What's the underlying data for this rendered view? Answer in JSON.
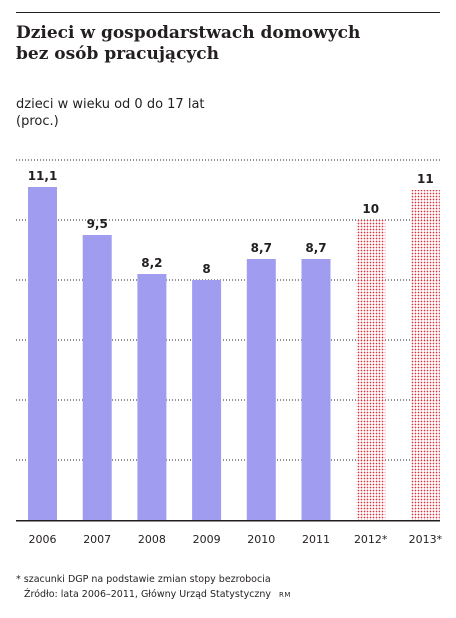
{
  "title_line1": "Dzieci w gospodarstwach domowych",
  "title_line2": "bez osób pracujących",
  "subtitle_line1": "dzieci w wieku od 0 do 17 lat",
  "subtitle_line2": "(proc.)",
  "footnote": "* szacunki DGP na podstawie zmian stopy bezrobocia",
  "source": "Źródło: lata 2006–2011, Główny Urząd Statystyczny",
  "credit": "RM",
  "colors": {
    "actual_bar": "#a09cf0",
    "estimate_dots": "#e0303a",
    "text": "#231f20",
    "grid": "#231f20"
  },
  "chart_data": {
    "type": "bar",
    "categories": [
      "2006",
      "2007",
      "2008",
      "2009",
      "2010",
      "2011",
      "2012*",
      "2013*"
    ],
    "values": [
      11.1,
      9.5,
      8.2,
      8,
      8.7,
      8.7,
      10,
      11
    ],
    "value_labels": [
      "11,1",
      "9,5",
      "8,2",
      "8",
      "8,7",
      "8,7",
      "10",
      "11"
    ],
    "estimated": [
      false,
      false,
      false,
      false,
      false,
      false,
      true,
      true
    ],
    "ylim": [
      0,
      12
    ],
    "grid": "dotted horizontal lines",
    "xlabel": "",
    "ylabel": ""
  }
}
